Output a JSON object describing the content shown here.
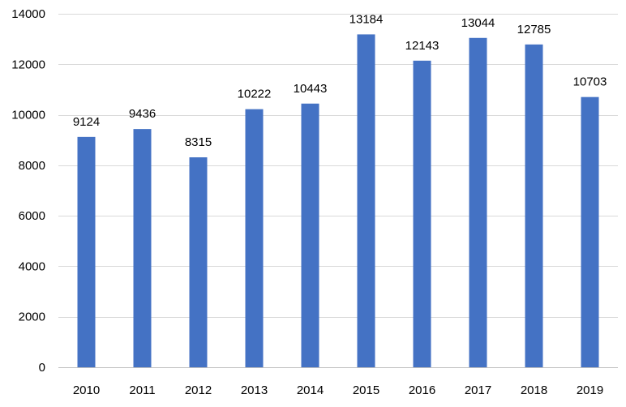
{
  "chart_data": {
    "type": "bar",
    "title": "",
    "xlabel": "",
    "ylabel": "",
    "categories": [
      "2010",
      "2011",
      "2012",
      "2013",
      "2014",
      "2015",
      "2016",
      "2017",
      "2018",
      "2019"
    ],
    "values": [
      9124,
      9436,
      8315,
      10222,
      10443,
      13184,
      12143,
      13044,
      12785,
      10703
    ],
    "ylim": [
      0,
      14000
    ],
    "yticks": [
      0,
      2000,
      4000,
      6000,
      8000,
      10000,
      12000,
      14000
    ],
    "grid": true,
    "data_labels": true,
    "legend": "none",
    "bar_color": "#4472c4"
  }
}
